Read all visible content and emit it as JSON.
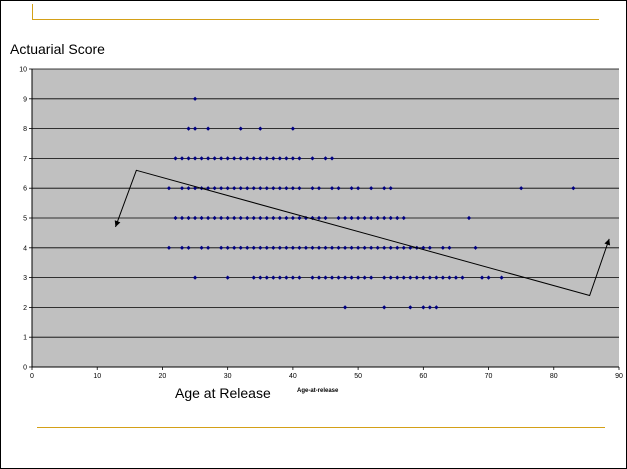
{
  "colors": {
    "plot_bg": "#c0c0c0",
    "gridline": "#000000",
    "marker": "#000080",
    "accent_rule": "#d4a017",
    "arrow": "#000000"
  },
  "chart_data": {
    "type": "scatter",
    "title": "",
    "xlabel": "Age at Release",
    "x_note": "Age-at-release",
    "ylabel": "Actuarial Score",
    "xlim": [
      0,
      90
    ],
    "ylim": [
      0,
      10
    ],
    "x_ticks": [
      0,
      10,
      20,
      30,
      40,
      50,
      60,
      70,
      80,
      90
    ],
    "y_ticks": [
      0,
      1,
      2,
      3,
      4,
      5,
      6,
      7,
      8,
      9,
      10
    ],
    "grid": "horizontal",
    "legend": "none",
    "points_by_score": [
      {
        "y": 2,
        "x": [
          48,
          54,
          58,
          60,
          61,
          62
        ]
      },
      {
        "y": 3,
        "x": [
          25,
          30,
          34,
          35,
          36,
          37,
          38,
          39,
          40,
          41,
          43,
          44,
          45,
          46,
          47,
          48,
          49,
          50,
          51,
          52,
          54,
          55,
          56,
          57,
          58,
          59,
          60,
          61,
          62,
          63,
          64,
          65,
          66,
          69,
          70,
          72
        ]
      },
      {
        "y": 4,
        "x": [
          21,
          23,
          24,
          26,
          27,
          29,
          30,
          31,
          32,
          33,
          34,
          35,
          36,
          37,
          38,
          39,
          40,
          41,
          42,
          43,
          44,
          45,
          46,
          47,
          48,
          49,
          50,
          51,
          52,
          53,
          54,
          55,
          56,
          57,
          58,
          59,
          60,
          61,
          63,
          64,
          68
        ]
      },
      {
        "y": 5,
        "x": [
          22,
          23,
          24,
          25,
          26,
          27,
          28,
          29,
          30,
          31,
          32,
          33,
          34,
          35,
          36,
          37,
          38,
          39,
          40,
          41,
          42,
          43,
          44,
          45,
          47,
          48,
          49,
          50,
          51,
          52,
          53,
          54,
          55,
          56,
          57,
          67
        ]
      },
      {
        "y": 6,
        "x": [
          21,
          23,
          24,
          25,
          26,
          27,
          28,
          29,
          30,
          31,
          32,
          33,
          34,
          35,
          36,
          37,
          38,
          39,
          40,
          41,
          43,
          44,
          46,
          47,
          49,
          50,
          52,
          54,
          55,
          75,
          83
        ]
      },
      {
        "y": 7,
        "x": [
          22,
          23,
          24,
          25,
          26,
          27,
          28,
          29,
          30,
          31,
          32,
          33,
          34,
          35,
          36,
          37,
          38,
          39,
          40,
          41,
          43,
          45,
          46
        ]
      },
      {
        "y": 8,
        "x": [
          24,
          25,
          27,
          32,
          35,
          40
        ]
      },
      {
        "y": 9,
        "x": [
          25
        ]
      }
    ],
    "annotation_polyline": [
      [
        12.8,
        4.7
      ],
      [
        16,
        6.6
      ],
      [
        85.5,
        2.4
      ],
      [
        88.5,
        4.3
      ]
    ]
  }
}
